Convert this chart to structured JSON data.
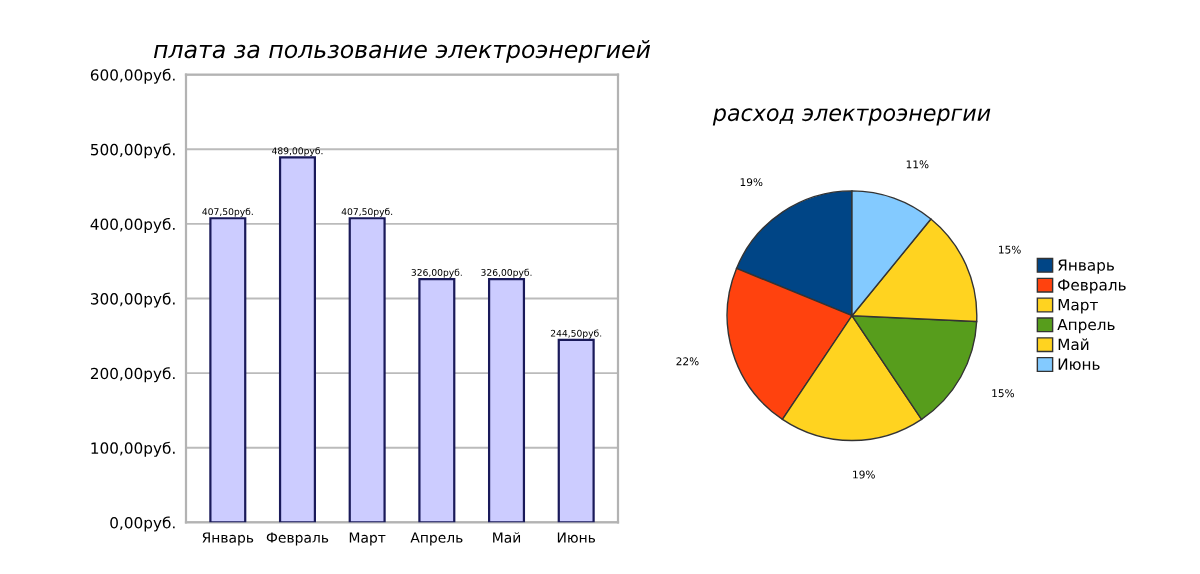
{
  "chart_data": [
    {
      "type": "bar",
      "title": "плата за пользование электроэнергией",
      "categories": [
        "Январь",
        "Февраль",
        "Март",
        "Апрель",
        "Май",
        "Июнь"
      ],
      "values": [
        407.5,
        489,
        407.5,
        326,
        326,
        244.5
      ],
      "value_labels": [
        "407,50руб.",
        "489,00руб.",
        "407,50руб.",
        "326,00руб.",
        "326,00руб.",
        "244,50руб."
      ],
      "color": "#ccccff",
      "ylim": [
        0,
        600
      ],
      "yticks": [
        {
          "value": 0,
          "label": "0,00руб."
        },
        {
          "value": 100,
          "label": "100,00руб."
        },
        {
          "value": 200,
          "label": "200,00руб."
        },
        {
          "value": 300,
          "label": "300,00руб."
        },
        {
          "value": 400,
          "label": "400,00руб."
        },
        {
          "value": 500,
          "label": "500,00руб."
        },
        {
          "value": 600,
          "label": "600,00руб."
        }
      ],
      "grid": "y",
      "legend": false
    },
    {
      "type": "pie",
      "title": "расход электроэнергии",
      "categories": [
        "Январь",
        "Февраль",
        "Март",
        "Апрель",
        "Май",
        "Июнь"
      ],
      "values": [
        19,
        22,
        19,
        15,
        15,
        11
      ],
      "value_labels": [
        "19%",
        "22%",
        "19%",
        "15%",
        "15%",
        "11%"
      ],
      "colors": [
        "#004586",
        "#ff420e",
        "#ffd320",
        "#579d1c",
        "#ffd320",
        "#83caff"
      ],
      "legend": "right"
    }
  ]
}
